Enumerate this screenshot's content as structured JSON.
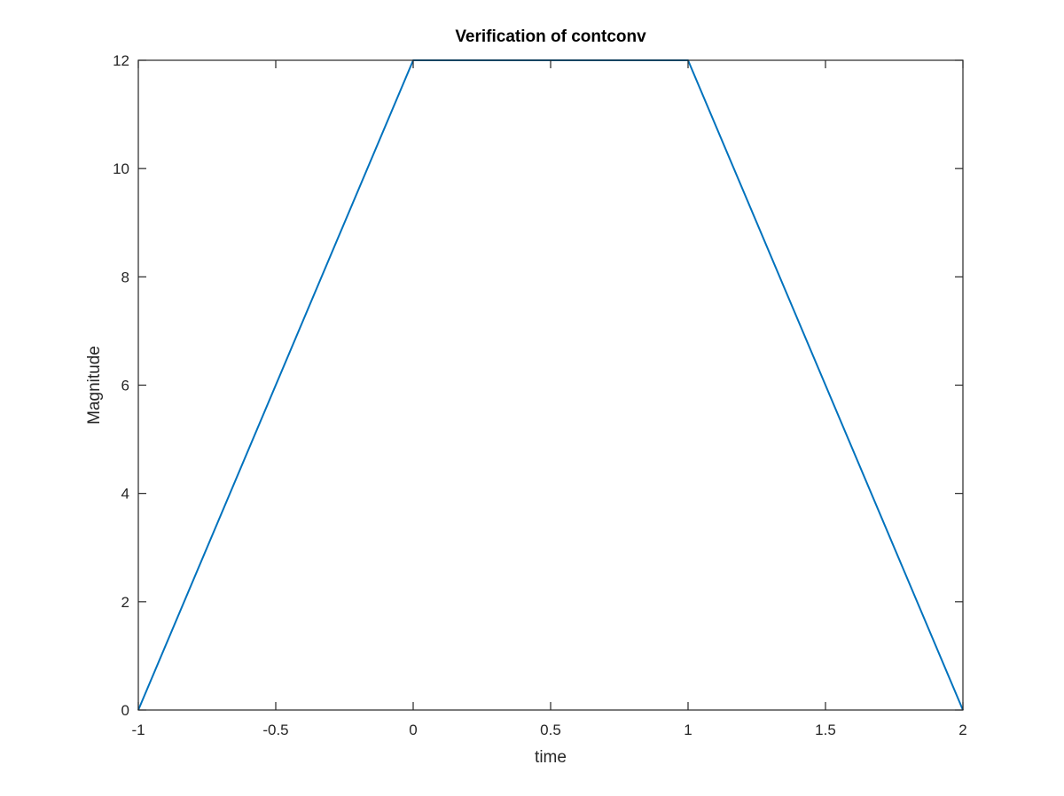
{
  "chart_data": {
    "type": "line",
    "title": "Verification of contconv",
    "xlabel": "time",
    "ylabel": "Magnitude",
    "xlim": [
      -1,
      2
    ],
    "ylim": [
      0,
      12
    ],
    "xticks": [
      -1,
      -0.5,
      0,
      0.5,
      1,
      1.5,
      2
    ],
    "xtick_labels": [
      "-1",
      "-0.5",
      "0",
      "0.5",
      "1",
      "1.5",
      "2"
    ],
    "yticks": [
      0,
      2,
      4,
      6,
      8,
      10,
      12
    ],
    "ytick_labels": [
      "0",
      "2",
      "4",
      "6",
      "8",
      "10",
      "12"
    ],
    "grid": false,
    "box": true,
    "series": [
      {
        "color": "#0072BD",
        "x": [
          -1,
          0,
          1,
          2
        ],
        "y": [
          0,
          12,
          12,
          0
        ]
      }
    ]
  }
}
